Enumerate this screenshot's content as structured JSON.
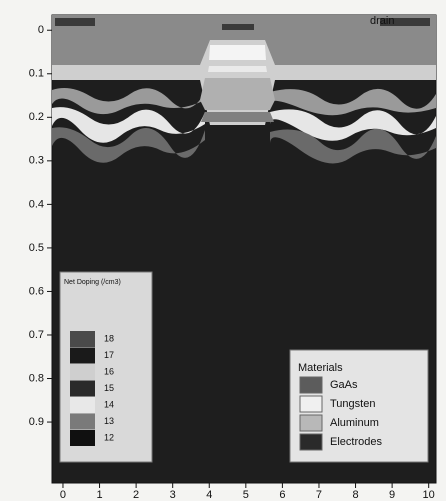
{
  "chart_data": {
    "type": "device-cross-section",
    "xlim": [
      -0.3,
      10.2
    ],
    "ylim": [
      -0.035,
      1.04
    ],
    "y_inverted": true,
    "xticks": [
      0,
      1,
      2,
      3,
      4,
      5,
      6,
      7,
      8,
      9,
      10
    ],
    "yticks": [
      0,
      0.1,
      0.2,
      0.3,
      0.4,
      0.5,
      0.6,
      0.7,
      0.8,
      0.9
    ],
    "annotations": [
      "drain"
    ],
    "doping_legend": {
      "title": "Net Doping (/cm3)",
      "levels": [
        18,
        17,
        16,
        15,
        14,
        13,
        12
      ]
    },
    "materials_legend": {
      "title": "Materials",
      "series": [
        {
          "name": "GaAs",
          "color": "#5c5c5c"
        },
        {
          "name": "Tungsten",
          "color": "#f0f0f0"
        },
        {
          "name": "Aluminum",
          "color": "#b8b8b8"
        },
        {
          "name": "Electrodes",
          "color": "#2a2a2a"
        }
      ]
    }
  }
}
